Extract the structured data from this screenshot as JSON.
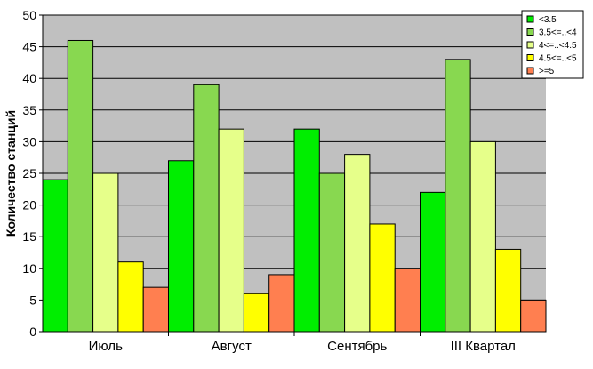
{
  "chart_data": {
    "type": "bar",
    "title": "",
    "xlabel": "",
    "ylabel": "Количество станций",
    "ylim": [
      0,
      50
    ],
    "yticks": [
      0,
      5,
      10,
      15,
      20,
      25,
      30,
      35,
      40,
      45,
      50
    ],
    "grid": true,
    "legend_position": "top-right",
    "categories": [
      "Июль",
      "Август",
      "Сентябрь",
      "III Квартал"
    ],
    "series": [
      {
        "name": "<3.5",
        "color": "#00ee00",
        "values": [
          24,
          27,
          32,
          22
        ]
      },
      {
        "name": "3.5<=..<4",
        "color": "#88d850",
        "values": [
          46,
          39,
          25,
          43
        ]
      },
      {
        "name": "4<=..<4.5",
        "color": "#e6ff8a",
        "values": [
          25,
          32,
          28,
          30
        ]
      },
      {
        "name": "4.5<=..<5",
        "color": "#ffff00",
        "values": [
          11,
          6,
          17,
          13
        ]
      },
      {
        "name": ">=5",
        "color": "#ff7f50",
        "values": [
          7,
          9,
          10,
          5
        ]
      }
    ],
    "plot_background": "#c0c0c0"
  }
}
